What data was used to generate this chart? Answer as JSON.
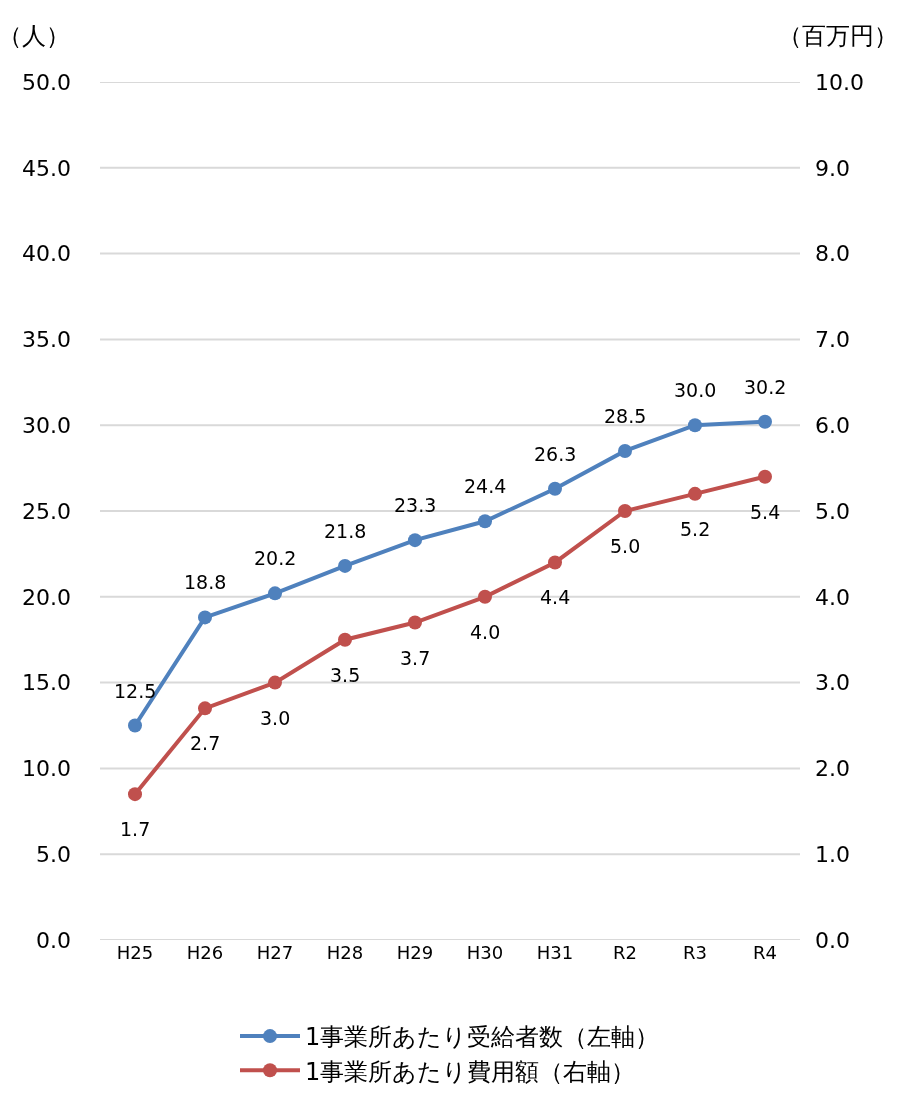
{
  "chart_data": {
    "type": "line",
    "categories": [
      "H25",
      "H26",
      "H27",
      "H28",
      "H29",
      "H30",
      "H31",
      "R2",
      "R3",
      "R4"
    ],
    "ylabel": "（人）",
    "y2label": "（百万円）",
    "series": [
      {
        "name": "1事業所あたり受給者数（左軸）",
        "color": "#4f81bd",
        "values": [
          12.5,
          18.8,
          20.2,
          21.8,
          23.3,
          24.4,
          26.3,
          28.5,
          30.0,
          30.2
        ],
        "value_labels": [
          "12.5",
          "18.8",
          "20.2",
          "21.8",
          "23.3",
          "24.4",
          "26.3",
          "28.5",
          "30.0",
          "30.2"
        ]
      },
      {
        "name": "1事業所あたり費用額（右軸）",
        "color": "#c0504d",
        "axis": "y2",
        "values": [
          1.7,
          2.7,
          3.0,
          3.5,
          3.7,
          4.0,
          4.4,
          5.0,
          5.2,
          5.4
        ],
        "value_labels": [
          "1.7",
          "2.7",
          "3.0",
          "3.5",
          "3.7",
          "4.0",
          "4.4",
          "5.0",
          "5.2",
          "5.4"
        ]
      }
    ],
    "ylim": [
      0,
      50
    ],
    "yticks": [
      {
        "value": 0,
        "label": "0.0"
      },
      {
        "value": 5,
        "label": "5.0"
      },
      {
        "value": 10,
        "label": "10.0"
      },
      {
        "value": 15,
        "label": "15.0"
      },
      {
        "value": 20,
        "label": "20.0"
      },
      {
        "value": 25,
        "label": "25.0"
      },
      {
        "value": 30,
        "label": "30.0"
      },
      {
        "value": 35,
        "label": "35.0"
      },
      {
        "value": 40,
        "label": "40.0"
      },
      {
        "value": 45,
        "label": "45.0"
      },
      {
        "value": 50,
        "label": "50.0"
      }
    ],
    "y2lim": [
      0,
      10
    ],
    "y2ticks": [
      {
        "value": 0,
        "label": "0.0"
      },
      {
        "value": 1,
        "label": "1.0"
      },
      {
        "value": 2,
        "label": "2.0"
      },
      {
        "value": 3,
        "label": "3.0"
      },
      {
        "value": 4,
        "label": "4.0"
      },
      {
        "value": 5,
        "label": "5.0"
      },
      {
        "value": 6,
        "label": "6.0"
      },
      {
        "value": 7,
        "label": "7.0"
      },
      {
        "value": 8,
        "label": "8.0"
      },
      {
        "value": 9,
        "label": "9.0"
      },
      {
        "value": 10,
        "label": "10.0"
      }
    ],
    "grid": "y",
    "legend": "bottom",
    "marker": "circle",
    "line_style": "solid"
  }
}
